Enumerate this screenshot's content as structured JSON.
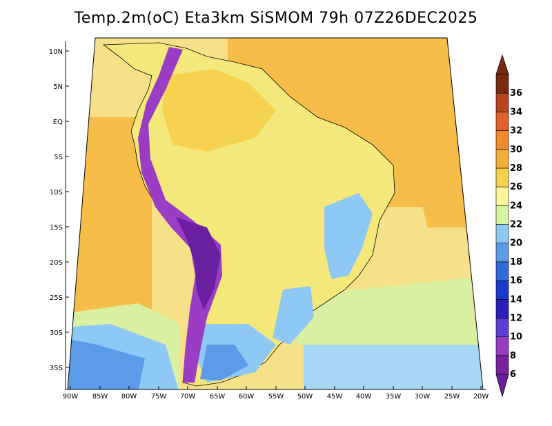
{
  "title": "Temp.2m(oC) Eta3km SiSMOM 79h 07Z26DEC2025",
  "lat_labels": [
    "10N",
    "5N",
    "EQ",
    "5S",
    "10S",
    "15S",
    "20S",
    "25S",
    "30S",
    "35S"
  ],
  "lon_labels": [
    "90W",
    "85W",
    "80W",
    "75W",
    "70W",
    "65W",
    "60W",
    "55W",
    "50W",
    "45W",
    "40W",
    "35W",
    "30W",
    "25W",
    "20W"
  ],
  "colorbar": {
    "unit": "oC",
    "labels": [
      "6",
      "8",
      "10",
      "12",
      "14",
      "16",
      "18",
      "20",
      "22",
      "24",
      "26",
      "28",
      "30",
      "32",
      "34",
      "36"
    ],
    "colors": [
      "#7a1fa0",
      "#9a3cc4",
      "#5a3fd0",
      "#2a1fb8",
      "#1a3acc",
      "#2f6bd8",
      "#5b9be8",
      "#8ec8f5",
      "#d7f5a0",
      "#fbf59a",
      "#f5d24e",
      "#f5ad3a",
      "#f08a2a",
      "#e0622a",
      "#b8451e",
      "#7a2a0f"
    ]
  },
  "legend_colors": {
    "ocean_warm": "#f6bd49",
    "ocean_mild": "#f7e08a",
    "ocean_cool": "#d9f0a3",
    "ocean_cold": "#a6d8f5",
    "land": "#f5e87a",
    "andes": "#6a1fa0"
  }
}
